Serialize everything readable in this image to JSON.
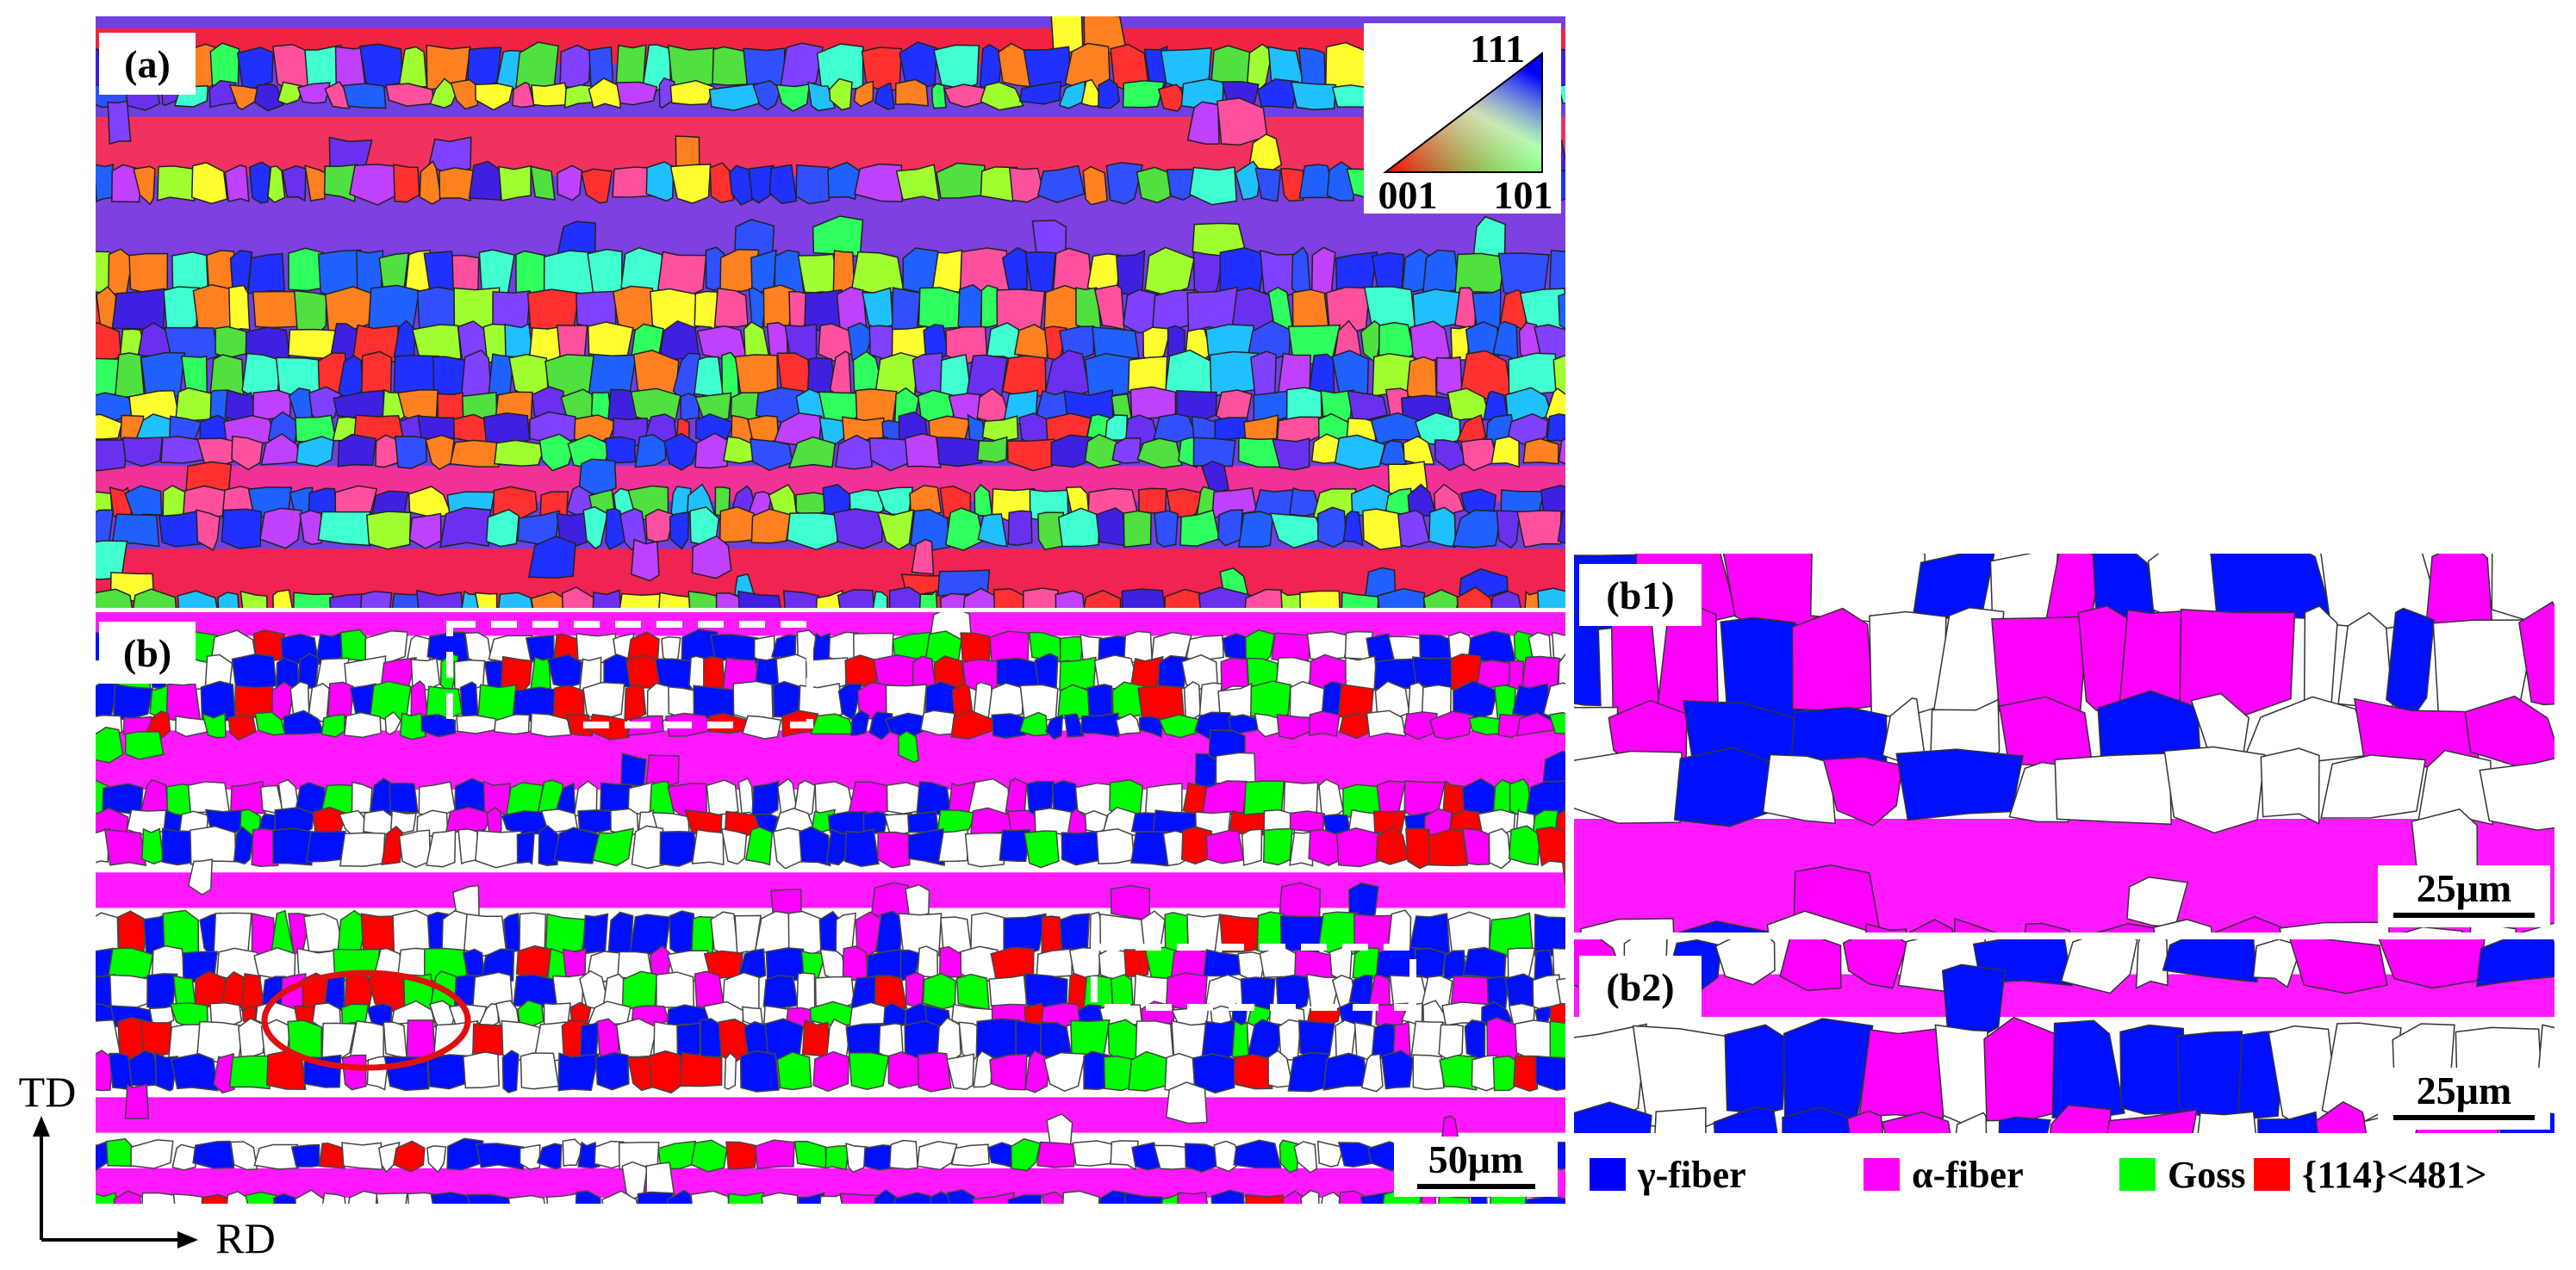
{
  "panels": [
    {
      "label": "(a)"
    },
    {
      "label": "(b)",
      "scale_bar": "50μm"
    },
    {
      "label": "(b1)",
      "scale_bar": "25μm"
    },
    {
      "label": "(b2)",
      "scale_bar": "25μm"
    }
  ],
  "ipf_key": {
    "corners": [
      "111",
      "001",
      "101"
    ]
  },
  "legend": [
    {
      "label": "γ-fiber",
      "color": "#0000ff"
    },
    {
      "label": "α-fiber",
      "color": "#ff00ff"
    },
    {
      "label": "Goss",
      "color": "#00ff00"
    },
    {
      "label": "{114}<481>",
      "color": "#ff0000"
    }
  ],
  "axes": {
    "vertical": "TD",
    "horizontal": "RD"
  }
}
